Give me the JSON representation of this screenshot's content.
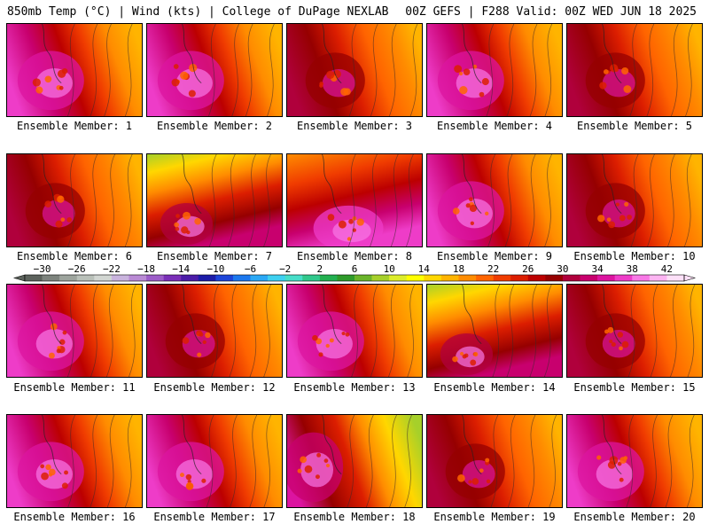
{
  "header": {
    "left": "850mb Temp (°C) | Wind (kts) | College of DuPage NEXLAB",
    "right": "00Z GEFS | F288 Valid: 00Z WED JUN 18 2025"
  },
  "chart_data": {
    "type": "heatmap",
    "title": "850mb Temp (°C) | Wind (kts) | College of DuPage NEXLAB",
    "subtitle": "00Z GEFS | F288 Valid: 00Z WED JUN 18 2025",
    "colorbar": {
      "tick_labels": [
        "−30",
        "−26",
        "−22",
        "−18",
        "−14",
        "−10",
        "−6",
        "−2",
        "2",
        "6",
        "10",
        "14",
        "18",
        "22",
        "26",
        "30",
        "34",
        "38",
        "42"
      ],
      "min": -32,
      "max": 44,
      "step": 2,
      "colors": [
        "#5c625c",
        "#7d837d",
        "#9da49d",
        "#b9c0b9",
        "#d2d6d2",
        "#c9b3dd",
        "#b98ad4",
        "#9c5cc8",
        "#7a2fb8",
        "#4b1ca8",
        "#1c1ca8",
        "#1c44d8",
        "#1c78ee",
        "#2aa8f5",
        "#3ed0f0",
        "#46ddc8",
        "#30c88c",
        "#22b050",
        "#2e9a2a",
        "#6ab42a",
        "#a6d02a",
        "#dcec2a",
        "#ffff00",
        "#ffd700",
        "#ffb400",
        "#ff8c00",
        "#ff6400",
        "#f03c00",
        "#dc1e00",
        "#bc0000",
        "#960000",
        "#b0003c",
        "#c8006e",
        "#dc14a0",
        "#ee3cc8",
        "#f878e6",
        "#fcb4f2",
        "#fde0f8"
      ]
    },
    "members": [
      {
        "label": "Ensemble Member: 1",
        "pattern": "hot-west-pink"
      },
      {
        "label": "Ensemble Member: 2",
        "pattern": "hot-west-pink"
      },
      {
        "label": "Ensemble Member: 3",
        "pattern": "hot-west-red"
      },
      {
        "label": "Ensemble Member: 4",
        "pattern": "hot-west-pink"
      },
      {
        "label": "Ensemble Member: 5",
        "pattern": "hot-west-red"
      },
      {
        "label": "Ensemble Member: 6",
        "pattern": "hot-west-red"
      },
      {
        "label": "Ensemble Member: 7",
        "pattern": "cool-north"
      },
      {
        "label": "Ensemble Member: 8",
        "pattern": "hot-south-pink"
      },
      {
        "label": "Ensemble Member: 9",
        "pattern": "hot-west-pink"
      },
      {
        "label": "Ensemble Member: 10",
        "pattern": "hot-west-red"
      },
      {
        "label": "Ensemble Member: 11",
        "pattern": "hot-west-pink"
      },
      {
        "label": "Ensemble Member: 12",
        "pattern": "hot-west-red"
      },
      {
        "label": "Ensemble Member: 13",
        "pattern": "hot-west-pink"
      },
      {
        "label": "Ensemble Member: 14",
        "pattern": "cool-north"
      },
      {
        "label": "Ensemble Member: 15",
        "pattern": "hot-west-red"
      },
      {
        "label": "Ensemble Member: 16",
        "pattern": "hot-west-pink"
      },
      {
        "label": "Ensemble Member: 17",
        "pattern": "hot-west-pink"
      },
      {
        "label": "Ensemble Member: 18",
        "pattern": "cool-east"
      },
      {
        "label": "Ensemble Member: 19",
        "pattern": "hot-west-red"
      },
      {
        "label": "Ensemble Member: 20",
        "pattern": "hot-west-pink"
      }
    ]
  }
}
